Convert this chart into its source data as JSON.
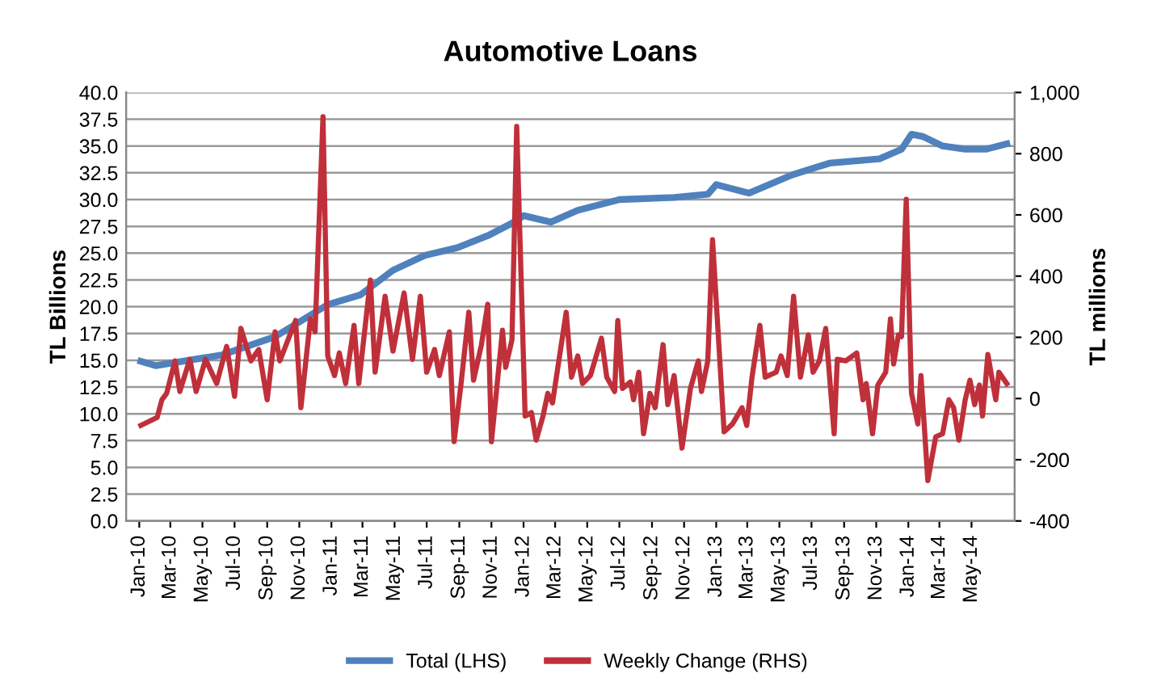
{
  "chart_data": {
    "type": "line",
    "title": "Automotive Loans",
    "ylabel": "TL Billions",
    "y2label": "TL millions",
    "xlim": [
      "2009-12-07",
      "2014-07-22"
    ],
    "xticks": [
      {
        "value": "2010-01-01",
        "label": "Jan-10"
      },
      {
        "value": "2010-03-01",
        "label": "Mar-10"
      },
      {
        "value": "2010-05-01",
        "label": "May-10"
      },
      {
        "value": "2010-07-01",
        "label": "Jul-10"
      },
      {
        "value": "2010-09-01",
        "label": "Sep-10"
      },
      {
        "value": "2010-11-01",
        "label": "Nov-10"
      },
      {
        "value": "2011-01-01",
        "label": "Jan-11"
      },
      {
        "value": "2011-03-01",
        "label": "Mar-11"
      },
      {
        "value": "2011-05-01",
        "label": "May-11"
      },
      {
        "value": "2011-07-01",
        "label": "Jul-11"
      },
      {
        "value": "2011-09-01",
        "label": "Sep-11"
      },
      {
        "value": "2011-11-01",
        "label": "Nov-11"
      },
      {
        "value": "2012-01-01",
        "label": "Jan-12"
      },
      {
        "value": "2012-03-01",
        "label": "Mar-12"
      },
      {
        "value": "2012-05-01",
        "label": "May-12"
      },
      {
        "value": "2012-07-01",
        "label": "Jul-12"
      },
      {
        "value": "2012-09-01",
        "label": "Sep-12"
      },
      {
        "value": "2012-11-01",
        "label": "Nov-12"
      },
      {
        "value": "2013-01-01",
        "label": "Jan-13"
      },
      {
        "value": "2013-03-01",
        "label": "Mar-13"
      },
      {
        "value": "2013-05-01",
        "label": "May-13"
      },
      {
        "value": "2013-07-01",
        "label": "Jul-13"
      },
      {
        "value": "2013-09-01",
        "label": "Sep-13"
      },
      {
        "value": "2013-11-01",
        "label": "Nov-13"
      },
      {
        "value": "2014-01-01",
        "label": "Jan-14"
      },
      {
        "value": "2014-03-01",
        "label": "Mar-14"
      },
      {
        "value": "2014-05-01",
        "label": "May-14"
      }
    ],
    "ylim": [
      0,
      40
    ],
    "yticks": [
      {
        "value": 0,
        "label": "0.0"
      },
      {
        "value": 2.5,
        "label": "2.5"
      },
      {
        "value": 5,
        "label": "5.0"
      },
      {
        "value": 7.5,
        "label": "7.5"
      },
      {
        "value": 10,
        "label": "10.0"
      },
      {
        "value": 12.5,
        "label": "12.5"
      },
      {
        "value": 15,
        "label": "15.0"
      },
      {
        "value": 17.5,
        "label": "17.5"
      },
      {
        "value": 20,
        "label": "20.0"
      },
      {
        "value": 22.5,
        "label": "22.5"
      },
      {
        "value": 25,
        "label": "25.0"
      },
      {
        "value": 27.5,
        "label": "27.5"
      },
      {
        "value": 30,
        "label": "30.0"
      },
      {
        "value": 32.5,
        "label": "32.5"
      },
      {
        "value": 35,
        "label": "35.0"
      },
      {
        "value": 37.5,
        "label": "37.5"
      },
      {
        "value": 40,
        "label": "40.0"
      }
    ],
    "y2lim": [
      -400,
      1000
    ],
    "y2ticks": [
      -400,
      -200,
      0,
      200,
      400,
      600,
      800,
      {
        "value": 1000,
        "label": "1,000"
      }
    ],
    "grid": "y",
    "legend": "bottom",
    "marker": "none",
    "line_style": "solid",
    "series": [
      {
        "name": "Total (LHS)",
        "color": "#4f81bd",
        "axis": "y",
        "x": [
          "2010-01-04",
          "2010-02-01",
          "2010-06-07",
          "2010-09-16",
          "2010-12-25",
          "2011-02-25",
          "2011-04-28",
          "2011-06-28",
          "2011-08-28",
          "2011-10-28",
          "2011-12-10",
          "2012-01-01",
          "2012-02-22",
          "2012-04-13",
          "2012-07-01",
          "2012-10-13",
          "2012-12-16",
          "2013-01-01",
          "2013-03-04",
          "2013-05-25",
          "2013-08-04",
          "2013-11-07",
          "2013-12-19",
          "2014-01-07",
          "2014-01-28",
          "2014-03-07",
          "2014-04-19",
          "2014-05-28",
          "2014-07-07"
        ],
        "values": [
          14.9,
          14.5,
          15.5,
          17.2,
          20.2,
          21.1,
          23.4,
          24.8,
          25.5,
          26.7,
          27.8,
          28.5,
          27.9,
          29.0,
          30.0,
          30.2,
          30.5,
          31.4,
          30.6,
          32.3,
          33.4,
          33.8,
          34.7,
          36.1,
          35.9,
          35.0,
          34.7,
          34.7,
          35.2
        ]
      },
      {
        "name": "Weekly Change (RHS)",
        "color": "#c0303a",
        "axis": "y2",
        "x": [
          "2010-01-04",
          "2010-02-04",
          "2010-02-13",
          "2010-02-22",
          "2010-03-10",
          "2010-03-19",
          "2010-04-07",
          "2010-04-19",
          "2010-05-07",
          "2010-05-28",
          "2010-06-16",
          "2010-07-01",
          "2010-07-13",
          "2010-08-01",
          "2010-08-16",
          "2010-09-01",
          "2010-09-16",
          "2010-09-25",
          "2010-10-25",
          "2010-11-04",
          "2010-11-22",
          "2010-12-01",
          "2010-12-16",
          "2010-12-25",
          "2011-01-07",
          "2011-01-16",
          "2011-01-28",
          "2011-02-13",
          "2011-02-22",
          "2011-03-16",
          "2011-03-25",
          "2011-04-13",
          "2011-04-28",
          "2011-05-19",
          "2011-06-04",
          "2011-06-19",
          "2011-07-01",
          "2011-07-16",
          "2011-07-25",
          "2011-08-13",
          "2011-08-22",
          "2011-09-04",
          "2011-09-19",
          "2011-09-28",
          "2011-10-13",
          "2011-10-25",
          "2011-11-01",
          "2011-11-22",
          "2011-11-28",
          "2011-12-10",
          "2011-12-19",
          "2012-01-04",
          "2012-01-16",
          "2012-01-25",
          "2012-02-07",
          "2012-02-16",
          "2012-02-25",
          "2012-03-22",
          "2012-04-01",
          "2012-04-13",
          "2012-04-22",
          "2012-05-07",
          "2012-05-28",
          "2012-06-07",
          "2012-06-22",
          "2012-06-28",
          "2012-07-07",
          "2012-07-22",
          "2012-07-28",
          "2012-08-07",
          "2012-08-16",
          "2012-08-28",
          "2012-09-07",
          "2012-09-22",
          "2012-10-01",
          "2012-10-13",
          "2012-10-28",
          "2012-11-13",
          "2012-11-28",
          "2012-12-04",
          "2012-12-16",
          "2012-12-25",
          "2013-01-16",
          "2013-02-01",
          "2013-02-19",
          "2013-02-28",
          "2013-03-10",
          "2013-03-25",
          "2013-04-04",
          "2013-04-25",
          "2013-05-04",
          "2013-05-16",
          "2013-05-28",
          "2013-06-10",
          "2013-06-25",
          "2013-07-04",
          "2013-07-16",
          "2013-07-28",
          "2013-08-13",
          "2013-08-19",
          "2013-09-04",
          "2013-09-25",
          "2013-10-07",
          "2013-10-13",
          "2013-10-25",
          "2013-11-04",
          "2013-11-19",
          "2013-11-28",
          "2013-12-04",
          "2013-12-13",
          "2013-12-19",
          "2013-12-28",
          "2014-01-07",
          "2014-01-19",
          "2014-01-25",
          "2014-02-07",
          "2014-02-22",
          "2014-03-07",
          "2014-03-19",
          "2014-03-28",
          "2014-04-07",
          "2014-04-19",
          "2014-04-28",
          "2014-05-07",
          "2014-05-16",
          "2014-05-22",
          "2014-06-01",
          "2014-06-16",
          "2014-06-22",
          "2014-07-07"
        ],
        "values": [
          -88,
          -62,
          -4,
          17,
          123,
          23,
          128,
          23,
          128,
          49,
          170,
          7,
          229,
          123,
          160,
          -4,
          218,
          123,
          255,
          -30,
          260,
          218,
          921,
          139,
          75,
          149,
          49,
          239,
          49,
          387,
          86,
          334,
          155,
          345,
          128,
          334,
          86,
          160,
          75,
          218,
          -141,
          44,
          282,
          60,
          176,
          308,
          -141,
          223,
          102,
          192,
          889,
          -57,
          -46,
          -136,
          -57,
          17,
          -14,
          282,
          70,
          139,
          49,
          75,
          197,
          70,
          23,
          255,
          33,
          54,
          -4,
          86,
          -115,
          17,
          -30,
          176,
          -20,
          75,
          -162,
          33,
          123,
          23,
          123,
          519,
          -109,
          -83,
          -30,
          -88,
          70,
          239,
          70,
          86,
          139,
          75,
          334,
          70,
          208,
          86,
          123,
          229,
          -115,
          128,
          123,
          149,
          -4,
          49,
          -115,
          44,
          86,
          260,
          113,
          208,
          202,
          651,
          17,
          -83,
          75,
          -268,
          -125,
          -115,
          -4,
          -30,
          -136,
          -4,
          60,
          -20,
          44,
          -57,
          144,
          -4,
          86,
          49
        ]
      }
    ]
  }
}
